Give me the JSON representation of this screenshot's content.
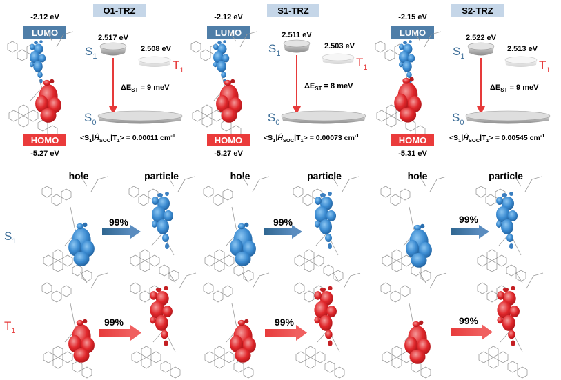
{
  "panels": [
    {
      "title": "O1-TRZ",
      "lumo_energy": "-2.12 eV",
      "homo_energy": "-5.27 eV",
      "s1_energy": "2.517 eV",
      "t1_energy": "2.508 eV",
      "dest_value": " = 9 meV",
      "soc_value": " = 0.00011 cm",
      "hole_label": "hole",
      "particle_label": "particle",
      "s1_transition_percent": "99%",
      "t1_transition_percent": "99%"
    },
    {
      "title": "S1-TRZ",
      "lumo_energy": "-2.12 eV",
      "homo_energy": "-5.27 eV",
      "s1_energy": "2.511 eV",
      "t1_energy": "2.503 eV",
      "dest_value": " = 8 meV",
      "soc_value": " = 0.00073 cm",
      "hole_label": "hole",
      "particle_label": "particle",
      "s1_transition_percent": "99%",
      "t1_transition_percent": "99%"
    },
    {
      "title": "S2-TRZ",
      "lumo_energy": "-2.15 eV",
      "homo_energy": "-5.31 eV",
      "s1_energy": "2.522 eV",
      "t1_energy": "2.513 eV",
      "dest_value": " = 9 meV",
      "soc_value": " = 0.00545 cm",
      "hole_label": "hole",
      "particle_label": "particle",
      "s1_transition_percent": "99%",
      "t1_transition_percent": "99%"
    }
  ],
  "labels": {
    "lumo": "LUMO",
    "homo": "HOMO",
    "s1_letter": "S",
    "t1_letter": "T",
    "s0_letter": "S",
    "sub_1": "1",
    "sub_0": "0",
    "delta_e": "ΔE",
    "st_sub": "ST",
    "soc_prefix": "<S",
    "soc_sep": "|",
    "soc_h": "Ĥ",
    "soc_sub": "SOC",
    "soc_end_bar": "|T",
    "soc_close": ">",
    "cm_exp": "-1",
    "row_s1_letter": "S",
    "row_t1_letter": "T"
  },
  "colors": {
    "lumo_blue": "#4f7ea8",
    "homo_red": "#ea3b3b",
    "orbital_blue": "#3d8fd4",
    "orbital_red": "#e0272b",
    "title_bg": "#c5d6e8",
    "s_blue": "#3d6e98",
    "t_red": "#e63a3a",
    "divider": "#4f7ea8"
  }
}
